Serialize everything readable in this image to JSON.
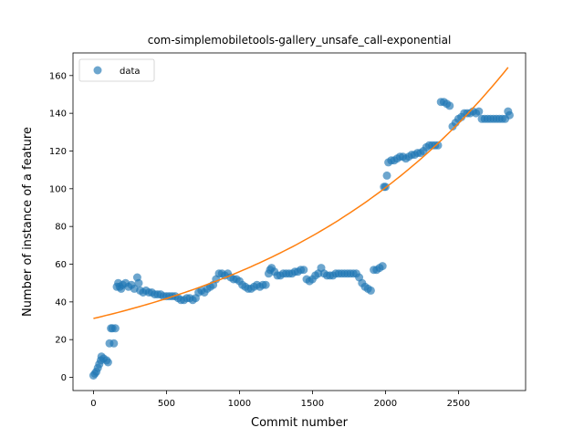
{
  "chart_data": {
    "type": "scatter",
    "title": "com-simplemobiletools-gallery_unsafe_call-exponential",
    "xlabel": "Commit number",
    "ylabel": "Number of instance of a feature",
    "xlim": [
      -140,
      2960
    ],
    "ylim": [
      -7,
      172
    ],
    "xticks": [
      0,
      500,
      1000,
      1500,
      2000,
      2500
    ],
    "yticks": [
      0,
      20,
      40,
      60,
      80,
      100,
      120,
      140,
      160
    ],
    "legend": {
      "position": "top-left",
      "entries": [
        "data"
      ]
    },
    "grid": false,
    "colors": {
      "data": "#1f77b4",
      "fit": "#ff7f0e"
    },
    "series": [
      {
        "name": "data",
        "kind": "scatter",
        "points": [
          [
            0,
            1
          ],
          [
            10,
            2
          ],
          [
            20,
            3
          ],
          [
            30,
            5
          ],
          [
            40,
            7
          ],
          [
            50,
            9
          ],
          [
            55,
            11
          ],
          [
            70,
            10
          ],
          [
            90,
            9
          ],
          [
            100,
            8
          ],
          [
            110,
            18
          ],
          [
            120,
            26
          ],
          [
            130,
            26
          ],
          [
            140,
            18
          ],
          [
            150,
            26
          ],
          [
            160,
            48
          ],
          [
            170,
            50
          ],
          [
            180,
            48
          ],
          [
            190,
            47
          ],
          [
            200,
            49
          ],
          [
            220,
            50
          ],
          [
            240,
            48
          ],
          [
            260,
            49
          ],
          [
            280,
            47
          ],
          [
            300,
            53
          ],
          [
            310,
            50
          ],
          [
            320,
            46
          ],
          [
            340,
            45
          ],
          [
            360,
            46
          ],
          [
            380,
            45
          ],
          [
            400,
            45
          ],
          [
            420,
            44
          ],
          [
            440,
            44
          ],
          [
            460,
            44
          ],
          [
            480,
            43
          ],
          [
            500,
            43
          ],
          [
            520,
            43
          ],
          [
            540,
            43
          ],
          [
            560,
            43
          ],
          [
            580,
            42
          ],
          [
            600,
            41
          ],
          [
            620,
            41
          ],
          [
            640,
            42
          ],
          [
            660,
            42
          ],
          [
            680,
            41
          ],
          [
            700,
            42
          ],
          [
            720,
            45
          ],
          [
            740,
            46
          ],
          [
            760,
            45
          ],
          [
            780,
            47
          ],
          [
            800,
            48
          ],
          [
            820,
            49
          ],
          [
            840,
            52
          ],
          [
            860,
            55
          ],
          [
            880,
            55
          ],
          [
            900,
            54
          ],
          [
            920,
            55
          ],
          [
            940,
            53
          ],
          [
            960,
            52
          ],
          [
            980,
            52
          ],
          [
            1000,
            51
          ],
          [
            1020,
            49
          ],
          [
            1040,
            48
          ],
          [
            1060,
            47
          ],
          [
            1080,
            47
          ],
          [
            1100,
            48
          ],
          [
            1120,
            49
          ],
          [
            1140,
            48
          ],
          [
            1160,
            49
          ],
          [
            1180,
            49
          ],
          [
            1200,
            55
          ],
          [
            1210,
            57
          ],
          [
            1220,
            58
          ],
          [
            1240,
            56
          ],
          [
            1260,
            54
          ],
          [
            1280,
            54
          ],
          [
            1300,
            55
          ],
          [
            1320,
            55
          ],
          [
            1340,
            55
          ],
          [
            1360,
            55
          ],
          [
            1380,
            56
          ],
          [
            1400,
            56
          ],
          [
            1420,
            57
          ],
          [
            1440,
            57
          ],
          [
            1460,
            52
          ],
          [
            1480,
            51
          ],
          [
            1500,
            52
          ],
          [
            1520,
            54
          ],
          [
            1540,
            55
          ],
          [
            1560,
            58
          ],
          [
            1580,
            55
          ],
          [
            1600,
            54
          ],
          [
            1620,
            54
          ],
          [
            1640,
            54
          ],
          [
            1660,
            55
          ],
          [
            1680,
            55
          ],
          [
            1700,
            55
          ],
          [
            1720,
            55
          ],
          [
            1740,
            55
          ],
          [
            1760,
            55
          ],
          [
            1780,
            55
          ],
          [
            1800,
            55
          ],
          [
            1820,
            53
          ],
          [
            1840,
            50
          ],
          [
            1860,
            48
          ],
          [
            1880,
            47
          ],
          [
            1900,
            46
          ],
          [
            1920,
            57
          ],
          [
            1940,
            57
          ],
          [
            1960,
            58
          ],
          [
            1980,
            59
          ],
          [
            1990,
            101
          ],
          [
            2000,
            101
          ],
          [
            2010,
            107
          ],
          [
            2020,
            114
          ],
          [
            2040,
            115
          ],
          [
            2060,
            115
          ],
          [
            2080,
            116
          ],
          [
            2100,
            117
          ],
          [
            2120,
            117
          ],
          [
            2140,
            116
          ],
          [
            2160,
            117
          ],
          [
            2180,
            118
          ],
          [
            2200,
            118
          ],
          [
            2220,
            119
          ],
          [
            2240,
            119
          ],
          [
            2260,
            120
          ],
          [
            2280,
            122
          ],
          [
            2300,
            123
          ],
          [
            2320,
            123
          ],
          [
            2340,
            123
          ],
          [
            2360,
            123
          ],
          [
            2380,
            146
          ],
          [
            2400,
            146
          ],
          [
            2420,
            145
          ],
          [
            2440,
            144
          ],
          [
            2460,
            133
          ],
          [
            2480,
            135
          ],
          [
            2500,
            137
          ],
          [
            2520,
            138
          ],
          [
            2540,
            140
          ],
          [
            2560,
            140
          ],
          [
            2580,
            140
          ],
          [
            2600,
            141
          ],
          [
            2620,
            140
          ],
          [
            2640,
            141
          ],
          [
            2660,
            137
          ],
          [
            2680,
            137
          ],
          [
            2700,
            137
          ],
          [
            2720,
            137
          ],
          [
            2740,
            137
          ],
          [
            2760,
            137
          ],
          [
            2780,
            137
          ],
          [
            2800,
            137
          ],
          [
            2820,
            137
          ],
          [
            2840,
            141
          ],
          [
            2850,
            139
          ]
        ]
      },
      {
        "name": "",
        "kind": "line",
        "model": "exponential",
        "a": 31.2,
        "b": 0.000585,
        "x_range": [
          0,
          2840
        ]
      }
    ]
  }
}
